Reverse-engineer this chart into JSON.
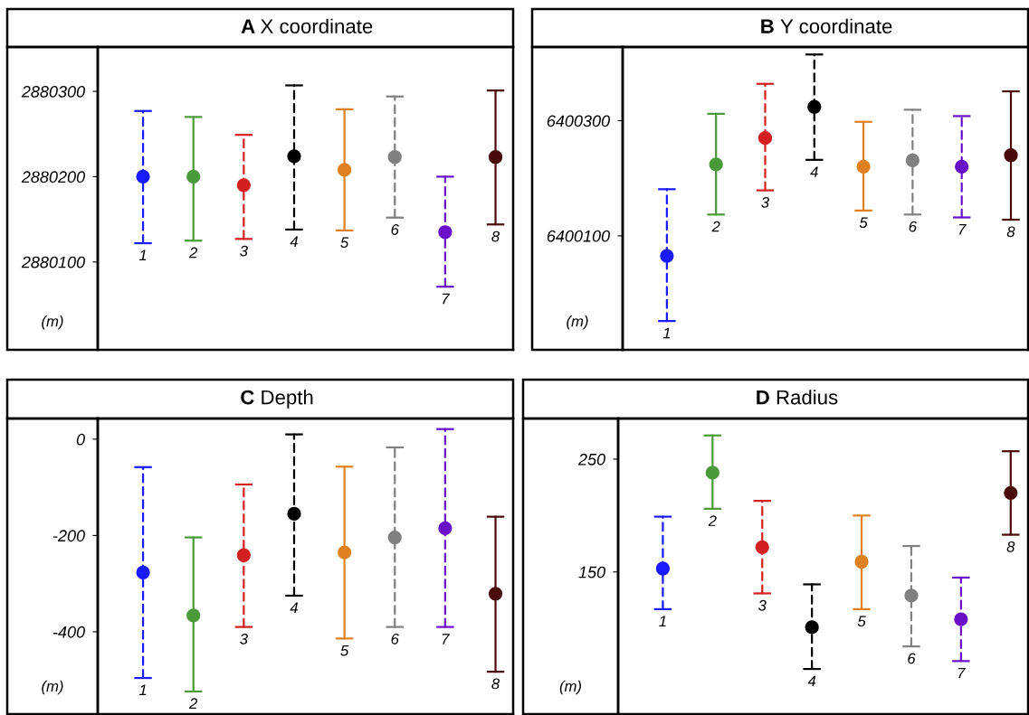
{
  "chart_data": [
    {
      "type": "scatter",
      "title": "A X coordinate",
      "ylabel": "(m)",
      "categories": [
        "1",
        "2",
        "3",
        "4",
        "5",
        "6",
        "7",
        "8"
      ],
      "ylim": [
        2879997,
        2880352
      ],
      "yticks": [
        2880100,
        2880200,
        2880300
      ],
      "marker": "circle",
      "grid": false,
      "series": [
        {
          "line_style": "dashed",
          "colors": [
            "#1a1aff",
            null,
            "#d42020",
            "#000000",
            null,
            "#808080",
            "#6a10c8",
            null
          ],
          "values": [
            2880200,
            null,
            2880190,
            2880224,
            null,
            2880223,
            2880135,
            null
          ],
          "errors": [
            [
              2880122,
              2880277
            ],
            null,
            [
              2880127,
              2880249
            ],
            [
              2880138,
              2880307
            ],
            null,
            [
              2880152,
              2880294
            ],
            [
              2880071,
              2880200
            ],
            null
          ]
        },
        {
          "line_style": "solid",
          "colors": [
            null,
            "#4a9a3a",
            null,
            null,
            "#e08020",
            null,
            null,
            "#4a0a0a"
          ],
          "values": [
            null,
            2880200,
            null,
            null,
            2880208,
            null,
            null,
            2880223
          ],
          "errors": [
            null,
            [
              2880125,
              2880270
            ],
            null,
            null,
            [
              2880137,
              2880279
            ],
            null,
            null,
            [
              2880144,
              2880301
            ]
          ]
        }
      ]
    },
    {
      "type": "scatter",
      "title": "B Y coordinate",
      "ylabel": "(m)",
      "categories": [
        "1",
        "2",
        "3",
        "4",
        "5",
        "6",
        "7",
        "8"
      ],
      "ylim": [
        6399902,
        6400428
      ],
      "yticks": [
        6400100,
        6400300
      ],
      "marker": "circle",
      "grid": false,
      "series": [
        {
          "line_style": "dashed",
          "colors": [
            "#1a1aff",
            null,
            "#d42020",
            "#000000",
            null,
            "#808080",
            "#6a10c8",
            null
          ],
          "values": [
            6400065,
            null,
            6400270,
            6400324,
            null,
            6400231,
            6400220,
            null
          ],
          "errors": [
            [
              6399952,
              6400181
            ],
            null,
            [
              6400179,
              6400364
            ],
            [
              6400232,
              6400415
            ],
            null,
            [
              6400137,
              6400319
            ],
            [
              6400132,
              6400308
            ],
            null
          ]
        },
        {
          "line_style": "solid",
          "colors": [
            null,
            "#4a9a3a",
            null,
            null,
            "#e08020",
            null,
            null,
            "#4a0a0a"
          ],
          "values": [
            null,
            6400224,
            null,
            null,
            6400220,
            null,
            null,
            6400240
          ],
          "errors": [
            null,
            [
              6400137,
              6400312
            ],
            null,
            null,
            [
              6400144,
              6400298
            ],
            null,
            null,
            [
              6400128,
              6400351
            ]
          ]
        }
      ]
    },
    {
      "type": "scatter",
      "title": "C Depth",
      "ylabel": "(m)",
      "categories": [
        "1",
        "2",
        "3",
        "4",
        "5",
        "6",
        "7",
        "8"
      ],
      "ylim": [
        -571,
        43
      ],
      "yticks": [
        -400,
        -200,
        0
      ],
      "marker": "circle",
      "grid": false,
      "series": [
        {
          "line_style": "dashed",
          "colors": [
            "#1a1aff",
            null,
            "#d42020",
            "#000000",
            null,
            "#808080",
            "#6a10c8",
            null
          ],
          "values": [
            -277,
            null,
            -241,
            -155,
            null,
            -204,
            -185,
            null
          ],
          "errors": [
            [
              -496,
              -58
            ],
            null,
            [
              -390,
              -94
            ],
            [
              -325,
              10
            ],
            null,
            [
              -390,
              -17
            ],
            [
              -390,
              21
            ],
            null
          ]
        },
        {
          "line_style": "solid",
          "colors": [
            null,
            "#4a9a3a",
            null,
            null,
            "#e08020",
            null,
            null,
            "#4a0a0a"
          ],
          "values": [
            null,
            -366,
            null,
            null,
            -235,
            null,
            null,
            -321
          ],
          "errors": [
            null,
            [
              -524,
              -204
            ],
            null,
            null,
            [
              -414,
              -57
            ],
            null,
            null,
            [
              -483,
              -161
            ]
          ]
        }
      ]
    },
    {
      "type": "scatter",
      "title": "D Radius",
      "ylabel": "(m)",
      "categories": [
        "1",
        "2",
        "3",
        "4",
        "5",
        "6",
        "7",
        "8"
      ],
      "ylim": [
        24,
        286
      ],
      "yticks": [
        150,
        250
      ],
      "marker": "circle",
      "grid": false,
      "series": [
        {
          "line_style": "dashed",
          "colors": [
            "#1a1aff",
            null,
            "#d42020",
            "#000000",
            null,
            "#808080",
            "#6a10c8",
            null
          ],
          "values": [
            153,
            null,
            172,
            101,
            null,
            129,
            108,
            null
          ],
          "errors": [
            [
              117,
              199
            ],
            null,
            [
              131,
              213
            ],
            [
              64,
              139
            ],
            null,
            [
              84,
              173
            ],
            [
              71,
              145
            ],
            null
          ]
        },
        {
          "line_style": "solid",
          "colors": [
            null,
            "#4a9a3a",
            null,
            null,
            "#e08020",
            null,
            null,
            "#4a0a0a"
          ],
          "values": [
            null,
            238,
            null,
            null,
            159,
            null,
            null,
            220
          ],
          "errors": [
            null,
            [
              206,
              271
            ],
            null,
            null,
            [
              117,
              200
            ],
            null,
            null,
            [
              183,
              257
            ]
          ]
        }
      ]
    }
  ]
}
